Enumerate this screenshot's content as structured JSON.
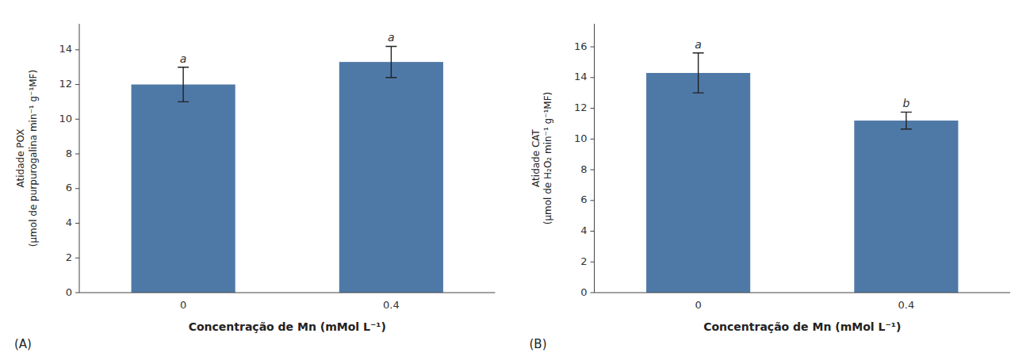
{
  "chart_data": [
    {
      "type": "bar",
      "categories": [
        "0",
        "0.4"
      ],
      "values": [
        12.0,
        13.3
      ],
      "errors": [
        1.0,
        0.9
      ],
      "letters": [
        "a",
        "a"
      ],
      "y_label": "Atidade POX\n(μmol de purpurogalina min⁻¹ g⁻¹MF)",
      "x_label": "Concentração de Mn (mMol L⁻¹)",
      "panel_label": "(A)",
      "ylim": [
        0,
        15.5
      ],
      "yticks": [
        0,
        2,
        4,
        6,
        8,
        10,
        12,
        14
      ],
      "grid": false
    },
    {
      "type": "bar",
      "categories": [
        "0",
        "0.4"
      ],
      "values": [
        14.3,
        11.2
      ],
      "errors": [
        1.3,
        0.55
      ],
      "letters": [
        "a",
        "b"
      ],
      "y_label": "Atidade CAT\n(μmol de H₂O₂ min⁻¹ g⁻¹MF)",
      "x_label": "Concentração de Mn (mMol L⁻¹)",
      "panel_label": "(B)",
      "ylim": [
        0,
        17.5
      ],
      "yticks": [
        0,
        2,
        4,
        6,
        8,
        10,
        12,
        14,
        16
      ],
      "grid": false
    }
  ]
}
